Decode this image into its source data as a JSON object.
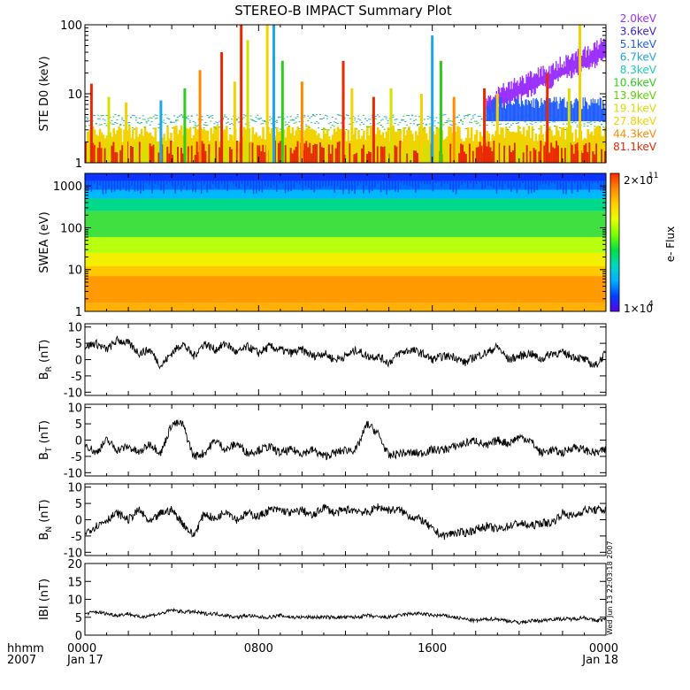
{
  "title": "STEREO-B IMPACT Summary Plot",
  "time_axis": {
    "label_line1": "hhmm",
    "label_line2": "2007",
    "ticks": [
      {
        "hhmm": "0000",
        "date": "Jan 17",
        "hours": 0
      },
      {
        "hhmm": "0800",
        "date": "",
        "hours": 8
      },
      {
        "hhmm": "1600",
        "date": "",
        "hours": 16
      },
      {
        "hhmm": "0000",
        "date": "Jan 18",
        "hours": 24
      }
    ],
    "range_hours": [
      0,
      24
    ]
  },
  "timestamp": "Wed Jun 13 22:03:18 2007",
  "chart_data": [
    {
      "type": "line",
      "ylabel": "STE D0 (keV)",
      "yscale": "log",
      "ylim": [
        1,
        100
      ],
      "yticks": [
        "1",
        "10",
        "100"
      ],
      "series": [
        {
          "name": "2.0keV",
          "color": "#9b30ff"
        },
        {
          "name": "3.6keV",
          "color": "#3a1fd0"
        },
        {
          "name": "5.1keV",
          "color": "#1f5cff"
        },
        {
          "name": "6.7keV",
          "color": "#1fa6e6"
        },
        {
          "name": "8.3keV",
          "color": "#1ccfb0"
        },
        {
          "name": "10.6keV",
          "color": "#2fcc1f"
        },
        {
          "name": "13.9keV",
          "color": "#5ad400"
        },
        {
          "name": "19.1keV",
          "color": "#d8e000"
        },
        {
          "name": "27.8keV",
          "color": "#f2d200"
        },
        {
          "name": "44.3keV",
          "color": "#ff8a00"
        },
        {
          "name": "81.1keV",
          "color": "#e82800"
        }
      ],
      "spikes": [
        {
          "t": 0.3,
          "v": 14
        },
        {
          "t": 1.1,
          "v": 9
        },
        {
          "t": 1.9,
          "v": 7.5
        },
        {
          "t": 3.5,
          "v": 8
        },
        {
          "t": 4.6,
          "v": 12
        },
        {
          "t": 5.3,
          "v": 22
        },
        {
          "t": 6.3,
          "v": 40
        },
        {
          "t": 6.9,
          "v": 15
        },
        {
          "t": 7.2,
          "v": 100
        },
        {
          "t": 7.5,
          "v": 60
        },
        {
          "t": 8.4,
          "v": 100
        },
        {
          "t": 8.7,
          "v": 100
        },
        {
          "t": 9.1,
          "v": 30
        },
        {
          "t": 10.0,
          "v": 15
        },
        {
          "t": 11.9,
          "v": 30
        },
        {
          "t": 12.3,
          "v": 12
        },
        {
          "t": 13.3,
          "v": 9
        },
        {
          "t": 14.1,
          "v": 12
        },
        {
          "t": 15.5,
          "v": 10
        },
        {
          "t": 16.0,
          "v": 70
        },
        {
          "t": 16.4,
          "v": 30
        },
        {
          "t": 17.0,
          "v": 9
        },
        {
          "t": 18.4,
          "v": 12
        },
        {
          "t": 19.0,
          "v": 10
        },
        {
          "t": 21.3,
          "v": 20
        },
        {
          "t": 22.3,
          "v": 12
        },
        {
          "t": 22.8,
          "v": 100
        }
      ],
      "low_energy_rise": {
        "start_hours": 18.5,
        "start_value": 8,
        "end_value": 50
      }
    },
    {
      "type": "heatmap",
      "ylabel": "SWEA (eV)",
      "yscale": "log",
      "ylim": [
        1,
        2000
      ],
      "yticks": [
        "1",
        "10",
        "100",
        "1000"
      ],
      "colorbar": {
        "label": "e- Flux",
        "max_label": "2×10",
        "max_exp": "11",
        "min_label": "1×10",
        "min_exp": "4",
        "scale": "log",
        "colors": [
          "#ff2a00",
          "#ff8800",
          "#ffd000",
          "#e8ff00",
          "#7cff00",
          "#00e040",
          "#00d8c0",
          "#00b0ff",
          "#0040ff",
          "#5a00e8"
        ]
      },
      "energy_color_bands": [
        {
          "e_low": 1,
          "e_high": 1.6,
          "color": "#ffb000"
        },
        {
          "e_low": 1.6,
          "e_high": 7,
          "color": "#ff9a00"
        },
        {
          "e_low": 7,
          "e_high": 12,
          "color": "#ffc800"
        },
        {
          "e_low": 12,
          "e_high": 25,
          "color": "#f2f000"
        },
        {
          "e_low": 25,
          "e_high": 60,
          "color": "#b8ff10"
        },
        {
          "e_low": 60,
          "e_high": 250,
          "color": "#40e040"
        },
        {
          "e_low": 250,
          "e_high": 500,
          "color": "#00d88a"
        },
        {
          "e_low": 500,
          "e_high": 800,
          "color": "#00b8ff"
        },
        {
          "e_low": 800,
          "e_high": 1300,
          "color": "#0070ff"
        },
        {
          "e_low": 1300,
          "e_high": 2000,
          "color": "#1030ff"
        }
      ]
    },
    {
      "type": "line",
      "ylabel": "B",
      "ylabel_sub": "R",
      "yunit": "(nT)",
      "ylim": [
        -11,
        11
      ],
      "yticks": [
        "-10",
        "-5",
        "0",
        "5",
        "10"
      ],
      "x": [
        0,
        0.5,
        1,
        1.5,
        2,
        2.5,
        3,
        3.5,
        4,
        4.5,
        5,
        5.5,
        6,
        6.5,
        7,
        7.5,
        8,
        8.5,
        9,
        9.5,
        10,
        10.5,
        11,
        11.5,
        12,
        12.5,
        13,
        13.5,
        14,
        14.5,
        15,
        15.5,
        16,
        16.5,
        17,
        17.5,
        18,
        18.5,
        19,
        19.5,
        20,
        20.5,
        21,
        21.5,
        22,
        22.5,
        23,
        23.5,
        24
      ],
      "values": [
        4,
        5,
        3,
        6,
        5,
        2,
        3,
        -2,
        2,
        5,
        1,
        5,
        3,
        5,
        2,
        4,
        2,
        4,
        3,
        2,
        3,
        1,
        2,
        0,
        1,
        3,
        1,
        1,
        -1,
        2,
        3,
        2,
        0,
        1,
        1,
        -1,
        1,
        2,
        4,
        0,
        1,
        2,
        0,
        2,
        2,
        1,
        0,
        -2,
        2
      ]
    },
    {
      "type": "line",
      "ylabel": "B",
      "ylabel_sub": "T",
      "yunit": "(nT)",
      "ylim": [
        -11,
        11
      ],
      "yticks": [
        "-10",
        "-5",
        "0",
        "5",
        "10"
      ],
      "x": [
        0,
        0.5,
        1,
        1.5,
        2,
        2.5,
        3,
        3.5,
        4,
        4.5,
        5,
        5.5,
        6,
        6.5,
        7,
        7.5,
        8,
        8.5,
        9,
        9.5,
        10,
        10.5,
        11,
        11.5,
        12,
        12.5,
        13,
        13.5,
        14,
        14.5,
        15,
        15.5,
        16,
        16.5,
        17,
        17.5,
        18,
        18.5,
        19,
        19.5,
        20,
        20.5,
        21,
        21.5,
        22,
        22.5,
        23,
        23.5,
        24
      ],
      "values": [
        -1,
        -4,
        0,
        -3,
        -2,
        -4,
        -1,
        -4,
        5,
        5,
        -5,
        -4,
        0,
        -3,
        -1,
        -4,
        -3,
        -2,
        -4,
        -3,
        -4,
        -3,
        -5,
        -4,
        -3,
        -3,
        5,
        2,
        -5,
        -4,
        -4,
        -4,
        -3,
        -3,
        -2,
        -1,
        0,
        -2,
        0,
        -1,
        1,
        0,
        -4,
        -3,
        -4,
        -2,
        -3,
        -4,
        -3
      ]
    },
    {
      "type": "line",
      "ylabel": "B",
      "ylabel_sub": "N",
      "yunit": "(nT)",
      "ylim": [
        -11,
        11
      ],
      "yticks": [
        "-10",
        "-5",
        "0",
        "5",
        "10"
      ],
      "x": [
        0,
        0.5,
        1,
        1.5,
        2,
        2.5,
        3,
        3.5,
        4,
        4.5,
        5,
        5.5,
        6,
        6.5,
        7,
        7.5,
        8,
        8.5,
        9,
        9.5,
        10,
        10.5,
        11,
        11.5,
        12,
        12.5,
        13,
        13.5,
        14,
        14.5,
        15,
        15.5,
        16,
        16.5,
        17,
        17.5,
        18,
        18.5,
        19,
        19.5,
        20,
        20.5,
        21,
        21.5,
        22,
        22.5,
        23,
        23.5,
        24
      ],
      "values": [
        -4,
        -2,
        0,
        2,
        0,
        3,
        -1,
        2,
        3,
        -1,
        -5,
        2,
        0,
        3,
        0,
        2,
        1,
        3,
        3,
        2,
        3,
        1,
        4,
        2,
        3,
        3,
        2,
        4,
        3,
        3,
        1,
        0,
        -3,
        -5,
        -4,
        -4,
        -3,
        -2,
        -3,
        -2,
        -1,
        -2,
        -1,
        -1,
        2,
        1,
        3,
        3,
        3
      ]
    },
    {
      "type": "line",
      "ylabel": "IBI",
      "yunit": "(nT)",
      "ylim": [
        0,
        20
      ],
      "yticks": [
        "0",
        "5",
        "10",
        "15",
        "20"
      ],
      "x": [
        0,
        0.5,
        1,
        1.5,
        2,
        2.5,
        3,
        3.5,
        4,
        4.5,
        5,
        5.5,
        6,
        6.5,
        7,
        7.5,
        8,
        8.5,
        9,
        9.5,
        10,
        10.5,
        11,
        11.5,
        12,
        12.5,
        13,
        13.5,
        14,
        14.5,
        15,
        15.5,
        16,
        16.5,
        17,
        17.5,
        18,
        18.5,
        19,
        19.5,
        20,
        20.5,
        21,
        21.5,
        22,
        22.5,
        23,
        23.5,
        24
      ],
      "values": [
        6,
        6.5,
        6,
        5.5,
        6,
        5,
        5.5,
        6,
        7,
        6.5,
        6.5,
        6,
        6,
        5.5,
        5,
        5.5,
        5,
        5,
        5.5,
        5,
        5,
        5,
        5,
        5,
        5,
        5,
        5.5,
        5,
        5,
        5.5,
        6,
        6,
        5.5,
        5.5,
        5,
        4.5,
        4,
        4.5,
        4.5,
        4,
        3.5,
        4,
        4,
        4.5,
        4.5,
        4.5,
        5,
        4,
        4.5
      ]
    }
  ]
}
